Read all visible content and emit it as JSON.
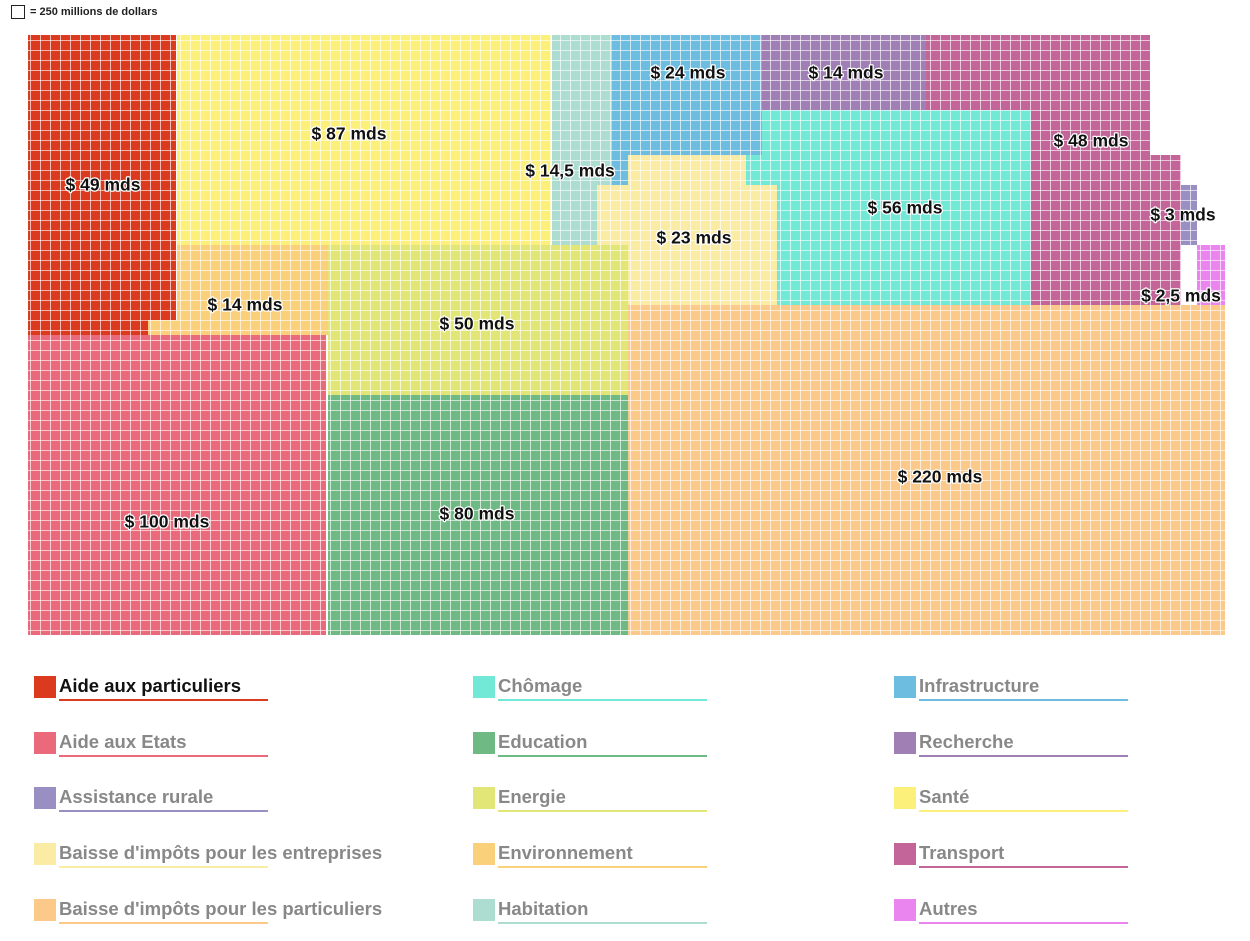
{
  "scale_note": "= 250 millions de dollars",
  "categories": [
    {
      "id": "aide-particuliers",
      "name": "Aide aux particuliers",
      "color": "#db3a1f",
      "active": true
    },
    {
      "id": "aide-etats",
      "name": "Aide aux Etats",
      "color": "#ea6a7c",
      "active": false
    },
    {
      "id": "assistance-rurale",
      "name": "Assistance rurale",
      "color": "#9a8fc2",
      "active": false
    },
    {
      "id": "baisse-entreprises",
      "name": "Baisse d'impôts pour les entreprises",
      "color": "#fbeca5",
      "active": false
    },
    {
      "id": "baisse-particuliers",
      "name": "Baisse d'impôts pour les particuliers",
      "color": "#fbc98a",
      "active": false
    },
    {
      "id": "chomage",
      "name": "Chômage",
      "color": "#72e8d6",
      "active": false
    },
    {
      "id": "education",
      "name": "Education",
      "color": "#6fba84",
      "active": false
    },
    {
      "id": "energie",
      "name": "Energie",
      "color": "#e2e676",
      "active": false
    },
    {
      "id": "environnement",
      "name": "Environnement",
      "color": "#fbd07a",
      "active": false
    },
    {
      "id": "habitation",
      "name": "Habitation",
      "color": "#acddd0",
      "active": false
    },
    {
      "id": "infrastructure",
      "name": "Infrastructure",
      "color": "#6cbddf",
      "active": false
    },
    {
      "id": "recherche",
      "name": "Recherche",
      "color": "#a07fb5",
      "active": false
    },
    {
      "id": "sante",
      "name": "Santé",
      "color": "#fdf07a",
      "active": false
    },
    {
      "id": "transport",
      "name": "Transport",
      "color": "#c4659a",
      "active": false
    },
    {
      "id": "autres",
      "name": "Autres",
      "color": "#ea85ef",
      "active": false
    }
  ],
  "chart_data": {
    "type": "treemap",
    "unit_note": "1 case = 250 millions de dollars",
    "items": [
      {
        "category": "Aide aux particuliers",
        "value": 49,
        "label": "$ 49 mds"
      },
      {
        "category": "Santé",
        "value": 87,
        "label": "$ 87 mds"
      },
      {
        "category": "Habitation",
        "value": 14.5,
        "label": "$ 14,5 mds"
      },
      {
        "category": "Infrastructure",
        "value": 24,
        "label": "$ 24 mds"
      },
      {
        "category": "Recherche",
        "value": 14,
        "label": "$ 14 mds"
      },
      {
        "category": "Transport",
        "value": 48,
        "label": "$ 48 mds"
      },
      {
        "category": "Chômage",
        "value": 56,
        "label": "$ 56 mds"
      },
      {
        "category": "Assistance rurale",
        "value": 3,
        "label": "$ 3 mds"
      },
      {
        "category": "Autres",
        "value": 2.5,
        "label": "$ 2,5 mds"
      },
      {
        "category": "Baisse d'impôts pour les entreprises",
        "value": 23,
        "label": "$ 23 mds"
      },
      {
        "category": "Environnement",
        "value": 14,
        "label": "$ 14 mds"
      },
      {
        "category": "Energie",
        "value": 50,
        "label": "$ 50 mds"
      },
      {
        "category": "Aide aux Etats",
        "value": 100,
        "label": "$ 100 mds"
      },
      {
        "category": "Education",
        "value": 80,
        "label": "$ 80 mds"
      },
      {
        "category": "Baisse d'impôts pour les particuliers",
        "value": 220,
        "label": "$ 220 mds"
      }
    ]
  }
}
